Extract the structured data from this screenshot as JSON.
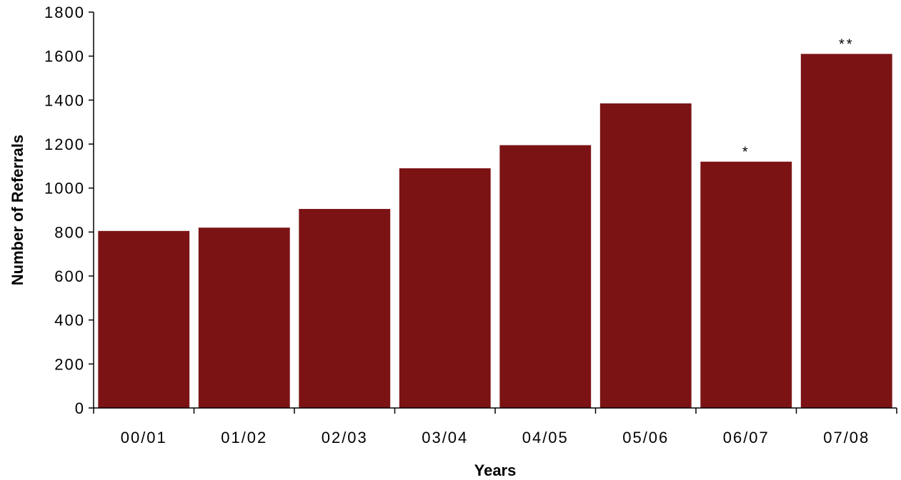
{
  "chart_data": {
    "type": "bar",
    "title": "",
    "xlabel": "Years",
    "ylabel": "Number of Referrals",
    "categories": [
      "00/01",
      "01/02",
      "02/03",
      "03/04",
      "04/05",
      "05/06",
      "06/07",
      "07/08"
    ],
    "values": [
      805,
      820,
      905,
      1090,
      1195,
      1385,
      1120,
      1610
    ],
    "annotations": [
      "",
      "",
      "",
      "",
      "",
      "",
      "*",
      "**"
    ],
    "ylim": [
      0,
      1800
    ],
    "yticks": [
      0,
      200,
      400,
      600,
      800,
      1000,
      1200,
      1400,
      1600,
      1800
    ],
    "grid": false,
    "bar_color": "#7b1315"
  }
}
